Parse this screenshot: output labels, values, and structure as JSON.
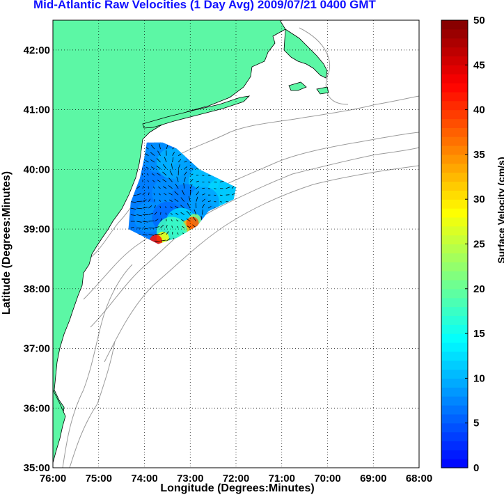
{
  "title": "Mid-Atlantic Raw Velocities (1 Day Avg) 2009/07/21 0400 GMT",
  "xlabel": "Longitude (Degrees:Minutes)",
  "ylabel": "Latitude (Degrees:Minutes)",
  "colorbar_label": "Surface Velocity (cm/s)",
  "colors": {
    "land": "#5cf7a5",
    "title": "#1010ff",
    "bathymetry": "#9a9a9a"
  },
  "map": {
    "lon_range": [
      -76,
      -68
    ],
    "lat_range": [
      35,
      42.5
    ],
    "lon_ticks": [
      -76,
      -75,
      -74,
      -73,
      -72,
      -71,
      -70,
      -69,
      -68
    ],
    "lon_tick_labels": [
      "76:00",
      "75:00",
      "74:00",
      "73:00",
      "72:00",
      "71:00",
      "70:00",
      "69:00",
      "68:00"
    ],
    "lat_ticks": [
      35,
      36,
      37,
      38,
      39,
      40,
      41,
      42
    ],
    "lat_tick_labels": [
      "35:00",
      "36:00",
      "37:00",
      "38:00",
      "39:00",
      "40:00",
      "41:00",
      "42:00"
    ],
    "grid": "dotted"
  },
  "colorbar": {
    "range": [
      0,
      50
    ],
    "ticks": [
      0,
      5,
      10,
      15,
      20,
      25,
      30,
      35,
      40,
      45,
      50
    ],
    "tick_labels": [
      "0",
      "5",
      "10",
      "15",
      "20",
      "25",
      "30",
      "35",
      "40",
      "45",
      "50"
    ],
    "colormap": "jet"
  },
  "chart_data": {
    "type": "heatmap",
    "title": "Mid-Atlantic Raw Velocities (1 Day Avg) 2009/07/21 0400 GMT",
    "xlabel": "Longitude (Degrees:Minutes)",
    "ylabel": "Latitude (Degrees:Minutes)",
    "xlim": [
      -76,
      -68
    ],
    "ylim": [
      35,
      42.5
    ],
    "zlabel": "Surface Velocity (cm/s)",
    "zlim": [
      0,
      50
    ],
    "velocity_field_boundary_lonlat": [
      [
        -73.95,
        40.45
      ],
      [
        -73.6,
        40.45
      ],
      [
        -73.3,
        40.35
      ],
      [
        -72.8,
        40.0
      ],
      [
        -72.0,
        39.7
      ],
      [
        -72.05,
        39.5
      ],
      [
        -72.6,
        39.3
      ],
      [
        -72.85,
        39.05
      ],
      [
        -73.3,
        38.85
      ],
      [
        -73.7,
        38.75
      ],
      [
        -74.35,
        39.0
      ],
      [
        -74.3,
        39.45
      ],
      [
        -74.1,
        39.85
      ],
      [
        -74.0,
        40.2
      ]
    ],
    "velocity_samples_lonlat_cms": [
      [
        -73.7,
        40.2,
        8
      ],
      [
        -73.4,
        40.1,
        10
      ],
      [
        -73.1,
        39.9,
        9
      ],
      [
        -72.7,
        39.8,
        11
      ],
      [
        -72.3,
        39.6,
        12
      ],
      [
        -73.9,
        39.7,
        7
      ],
      [
        -73.5,
        39.6,
        8
      ],
      [
        -73.1,
        39.5,
        7
      ],
      [
        -72.7,
        39.45,
        9
      ],
      [
        -73.9,
        39.2,
        8
      ],
      [
        -73.5,
        39.2,
        6
      ],
      [
        -73.2,
        39.1,
        12
      ],
      [
        -72.9,
        39.15,
        22
      ],
      [
        -73.05,
        39.05,
        32
      ],
      [
        -72.95,
        39.1,
        38
      ],
      [
        -73.4,
        38.95,
        18
      ],
      [
        -73.6,
        38.85,
        28
      ],
      [
        -73.75,
        38.8,
        42
      ]
    ]
  }
}
